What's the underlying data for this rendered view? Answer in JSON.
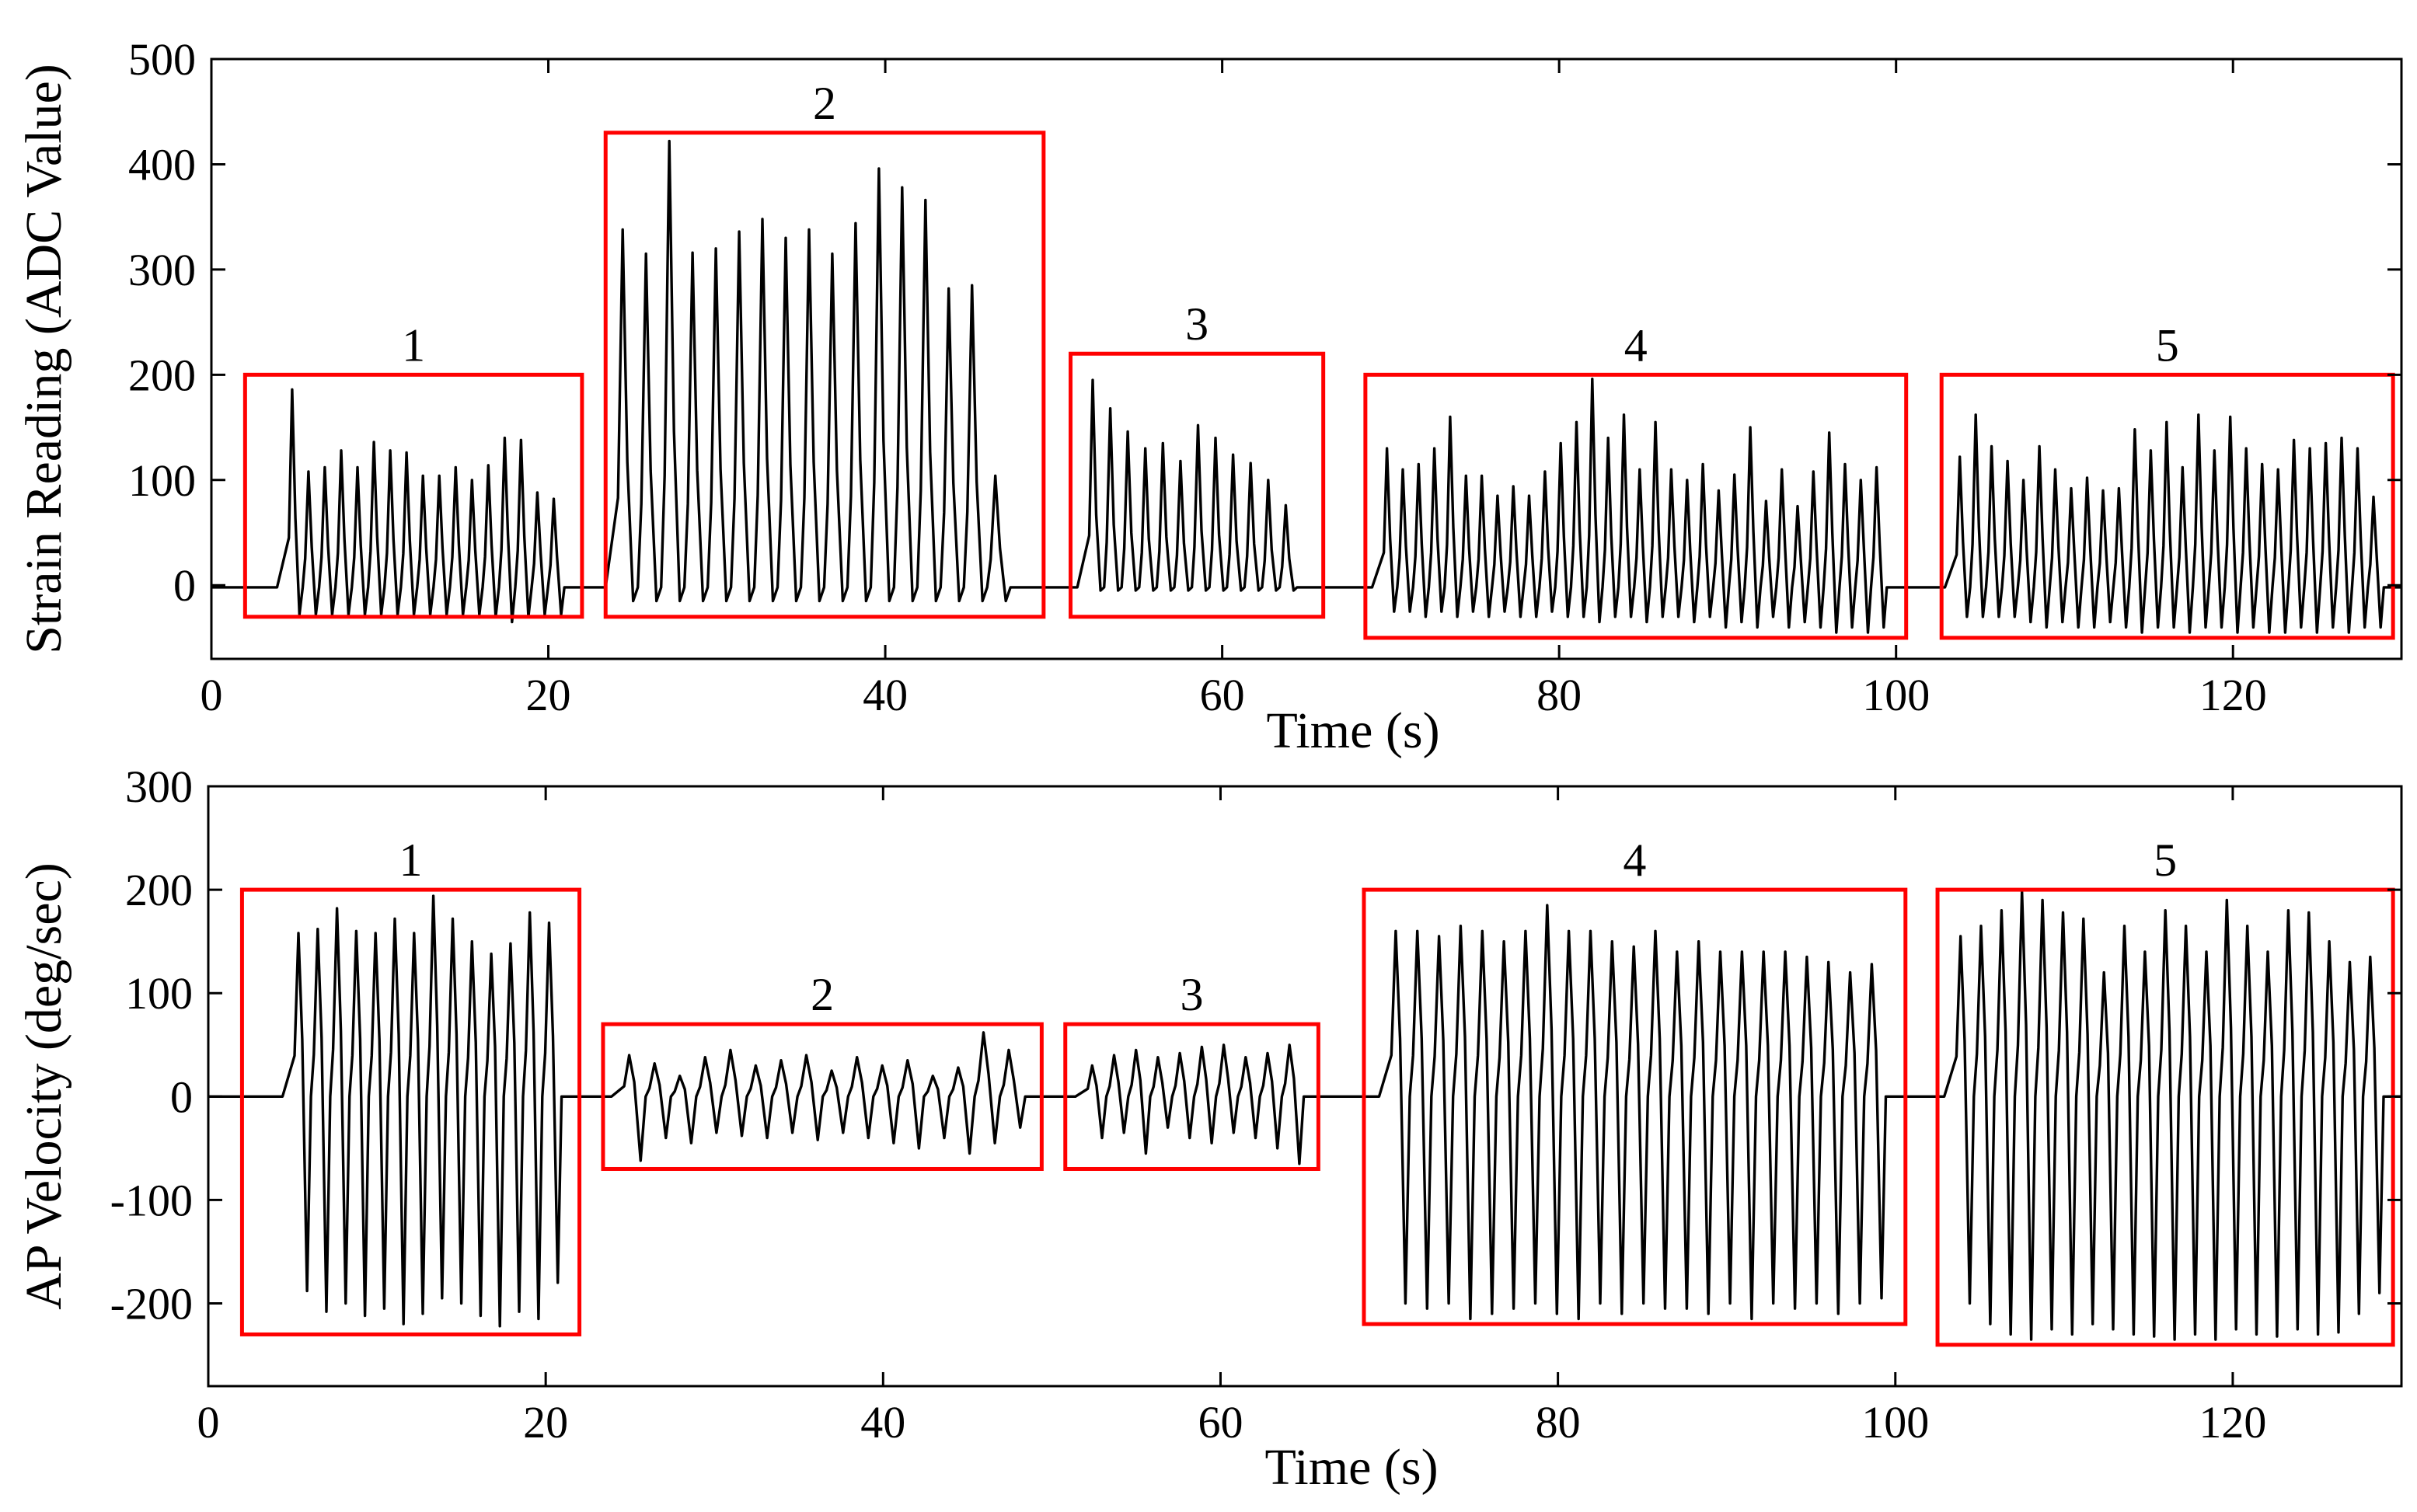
{
  "chart_data": [
    {
      "type": "line",
      "title": "",
      "xlabel": "Time (s)",
      "ylabel": "Strain Reading (ADC Value)",
      "xlim": [
        0,
        130
      ],
      "ylim": [
        -70,
        500
      ],
      "xticks": [
        0,
        20,
        40,
        60,
        80,
        100,
        120
      ],
      "xtick_labels": [
        "0",
        "20",
        "40",
        "60",
        "80",
        "100",
        "120"
      ],
      "yticks": [
        0,
        100,
        200,
        300,
        400,
        500
      ],
      "ytick_labels": [
        "0",
        "100",
        "200",
        "300",
        "400",
        "500"
      ],
      "grid": false,
      "series": [
        {
          "name": "Strain reading",
          "baseline": -2,
          "segments": [
            {
              "start": 4.5,
              "end": 21.0,
              "peaks": [
                186,
                108,
                112,
                128,
                112,
                136,
                128,
                126,
                104,
                104,
                112,
                100,
                114,
                140,
                138,
                88,
                82
              ],
              "troughs": [
                -28,
                -28,
                -28,
                -28,
                -28,
                -28,
                -28,
                -28,
                -28,
                -28,
                -28,
                -28,
                -30,
                -35,
                -30,
                -28,
                -28
              ]
            },
            {
              "start": 24.0,
              "end": 47.5,
              "peaks": [
                338,
                315,
                422,
                316,
                320,
                336,
                348,
                330,
                338,
                315,
                344,
                396,
                378,
                366,
                282,
                285,
                104
              ],
              "troughs": [
                -15,
                -15,
                -15,
                -15,
                -15,
                -15,
                -15,
                -15,
                -15,
                -15,
                -15,
                -15,
                -15,
                -15,
                -15,
                -15,
                -15
              ]
            },
            {
              "start": 52.0,
              "end": 64.5,
              "peaks": [
                195,
                168,
                146,
                130,
                135,
                118,
                152,
                140,
                124,
                116,
                100,
                76
              ],
              "troughs": [
                -5,
                -5,
                -5,
                -5,
                -5,
                -5,
                -5,
                -5,
                -5,
                -5,
                -5,
                -5
              ]
            },
            {
              "start": 69.5,
              "end": 99.5,
              "peaks": [
                130,
                110,
                115,
                130,
                160,
                104,
                104,
                85,
                94,
                85,
                108,
                135,
                155,
                196,
                140,
                162,
                110,
                155,
                110,
                100,
                115,
                90,
                105,
                150,
                80,
                110,
                75,
                108,
                145,
                115,
                100,
                112
              ],
              "troughs": [
                -25,
                -25,
                -30,
                -25,
                -30,
                -25,
                -30,
                -25,
                -30,
                -30,
                -25,
                -30,
                -30,
                -35,
                -30,
                -30,
                -35,
                -30,
                -30,
                -35,
                -30,
                -40,
                -35,
                -40,
                -30,
                -40,
                -35,
                -40,
                -45,
                -40,
                -45,
                -40
              ]
            },
            {
              "start": 103.5,
              "end": 129.0,
              "peaks": [
                122,
                162,
                132,
                118,
                100,
                132,
                110,
                92,
                102,
                90,
                92,
                148,
                128,
                155,
                112,
                162,
                128,
                160,
                130,
                115,
                110,
                138,
                130,
                135,
                140,
                130,
                84
              ],
              "troughs": [
                -30,
                -30,
                -30,
                -30,
                -35,
                -40,
                -35,
                -40,
                -40,
                -35,
                -40,
                -45,
                -40,
                -40,
                -45,
                -40,
                -40,
                -45,
                -40,
                -45,
                -45,
                -40,
                -45,
                -40,
                -45,
                -40,
                -40
              ]
            }
          ]
        }
      ],
      "regions": [
        {
          "label": "1",
          "x": [
            2,
            22
          ],
          "y": [
            -30,
            200
          ]
        },
        {
          "label": "2",
          "x": [
            23.4,
            49.4
          ],
          "y": [
            -30,
            430
          ]
        },
        {
          "label": "3",
          "x": [
            51,
            66
          ],
          "y": [
            -30,
            220
          ]
        },
        {
          "label": "4",
          "x": [
            68.5,
            100.6
          ],
          "y": [
            -50,
            200
          ]
        },
        {
          "label": "5",
          "x": [
            102.7,
            129.5
          ],
          "y": [
            -50,
            200
          ]
        }
      ]
    },
    {
      "type": "line",
      "title": "",
      "xlabel": "Time (s)",
      "ylabel": "AP Velocity (deg/sec)",
      "xlim": [
        0,
        130
      ],
      "ylim": [
        -280,
        300
      ],
      "xticks": [
        0,
        20,
        40,
        60,
        80,
        100,
        120
      ],
      "xtick_labels": [
        "0",
        "20",
        "40",
        "60",
        "80",
        "100",
        "120"
      ],
      "yticks": [
        -200,
        -100,
        0,
        100,
        200,
        300
      ],
      "ytick_labels": [
        "-200",
        "-100",
        "0",
        "100",
        "200",
        "300"
      ],
      "grid": false,
      "series": [
        {
          "name": "AP velocity",
          "baseline": 0,
          "segments": [
            {
              "start": 5.0,
              "end": 21.0,
              "peaks": [
                158,
                162,
                182,
                160,
                158,
                172,
                158,
                194,
                172,
                150,
                138,
                148,
                178,
                168
              ],
              "troughs": [
                -188,
                -208,
                -200,
                -212,
                -205,
                -220,
                -210,
                -195,
                -200,
                -212,
                -222,
                -208,
                -215,
                -180
              ]
            },
            {
              "start": 24.5,
              "end": 48.5,
              "peaks": [
                40,
                32,
                20,
                38,
                45,
                30,
                35,
                40,
                25,
                38,
                30,
                35,
                20,
                28,
                62,
                45
              ],
              "troughs": [
                -62,
                -40,
                -45,
                -35,
                -38,
                -40,
                -35,
                -42,
                -35,
                -40,
                -45,
                -50,
                -40,
                -55,
                -45,
                -30
              ]
            },
            {
              "start": 52.0,
              "end": 65.0,
              "peaks": [
                30,
                40,
                45,
                38,
                42,
                48,
                50,
                38,
                42,
                50
              ],
              "troughs": [
                -40,
                -35,
                -55,
                -30,
                -40,
                -45,
                -35,
                -40,
                -50,
                -65
              ]
            },
            {
              "start": 70.0,
              "end": 99.5,
              "peaks": [
                160,
                160,
                155,
                165,
                160,
                150,
                160,
                185,
                160,
                160,
                150,
                145,
                160,
                140,
                150,
                140,
                140,
                140,
                140,
                135,
                130,
                120,
                128
              ],
              "troughs": [
                -200,
                -205,
                -200,
                -215,
                -210,
                -205,
                -200,
                -210,
                -215,
                -200,
                -210,
                -200,
                -205,
                -205,
                -210,
                -200,
                -215,
                -200,
                -205,
                -200,
                -210,
                -200,
                -195
              ]
            },
            {
              "start": 103.5,
              "end": 129.0,
              "peaks": [
                155,
                165,
                180,
                198,
                190,
                178,
                172,
                120,
                165,
                140,
                180,
                165,
                140,
                190,
                165,
                140,
                180,
                178,
                150,
                130,
                135
              ],
              "troughs": [
                -200,
                -220,
                -230,
                -235,
                -225,
                -230,
                -220,
                -225,
                -230,
                -232,
                -235,
                -230,
                -235,
                -225,
                -230,
                -232,
                -225,
                -230,
                -228,
                -210,
                -190
              ]
            }
          ]
        }
      ],
      "regions": [
        {
          "label": "1",
          "x": [
            2,
            22
          ],
          "y": [
            -230,
            200
          ]
        },
        {
          "label": "2",
          "x": [
            23.4,
            49.4
          ],
          "y": [
            -70,
            70
          ]
        },
        {
          "label": "3",
          "x": [
            50.8,
            65.8
          ],
          "y": [
            -70,
            70
          ]
        },
        {
          "label": "4",
          "x": [
            68.5,
            100.6
          ],
          "y": [
            -220,
            200
          ]
        },
        {
          "label": "5",
          "x": [
            102.5,
            129.5
          ],
          "y": [
            -240,
            200
          ]
        }
      ]
    }
  ]
}
